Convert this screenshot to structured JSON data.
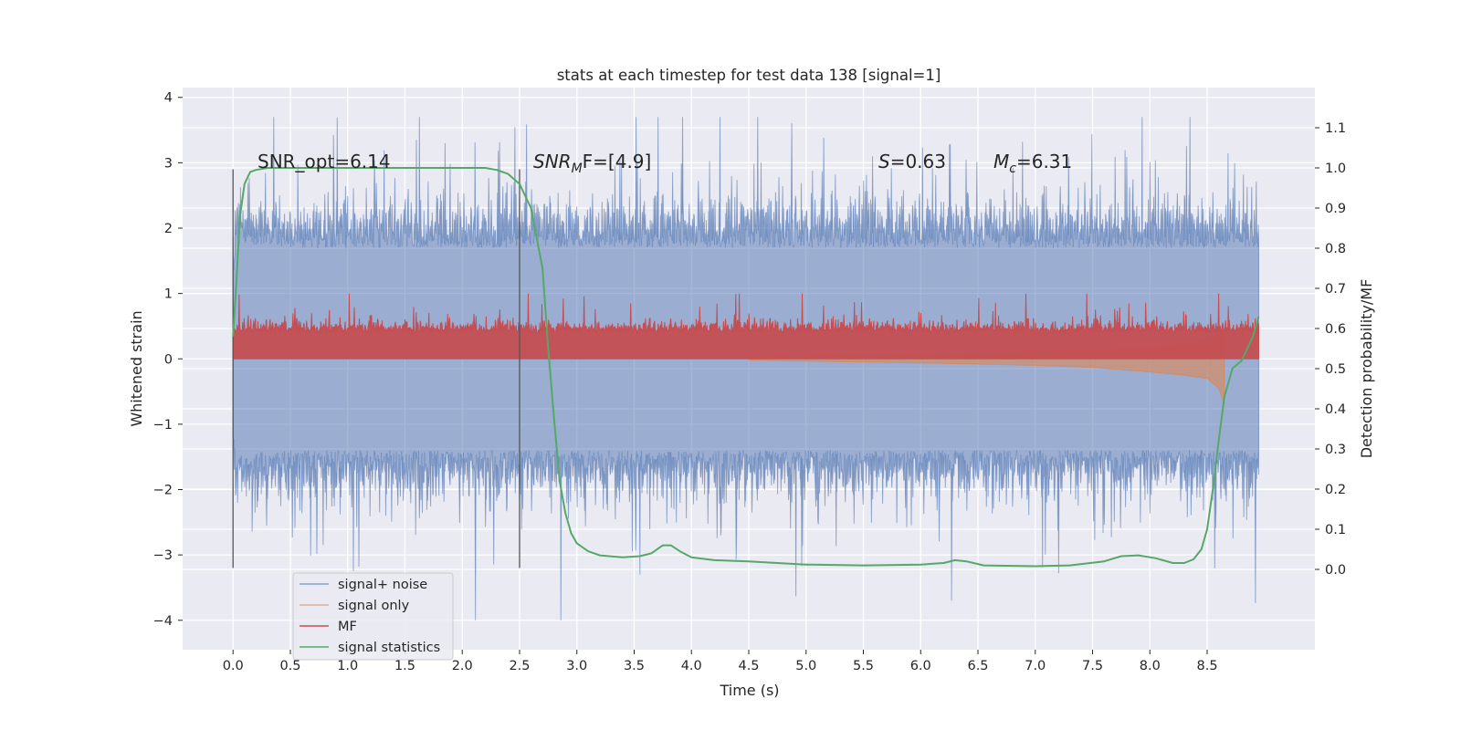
{
  "chart_data": {
    "type": "line",
    "title": "stats at each timestep for test data 138 [signal=1]",
    "xlabel": "Time (s)",
    "ylabel": "Whitened strain",
    "y2label": "Detection probability/MF",
    "xlim": [
      -0.44,
      9.44
    ],
    "ylim": [
      -4.45,
      4.15
    ],
    "y2lim": [
      -0.2,
      1.2
    ],
    "xticks": [
      0.0,
      0.5,
      1.0,
      1.5,
      2.0,
      2.5,
      3.0,
      3.5,
      4.0,
      4.5,
      5.0,
      5.5,
      6.0,
      6.5,
      7.0,
      7.5,
      8.0,
      8.5
    ],
    "xtick_labels": [
      "0.0",
      "0.5",
      "1.0",
      "1.5",
      "2.0",
      "2.5",
      "3.0",
      "3.5",
      "4.0",
      "4.5",
      "5.0",
      "5.5",
      "6.0",
      "6.5",
      "7.0",
      "7.5",
      "8.0",
      "8.5"
    ],
    "yticks": [
      -4,
      -3,
      -2,
      -1,
      0,
      1,
      2,
      3,
      4
    ],
    "ytick_labels": [
      "−4",
      "−3",
      "−2",
      "−1",
      "0",
      "1",
      "2",
      "3",
      "4"
    ],
    "y2ticks": [
      0.0,
      0.1,
      0.2,
      0.3,
      0.4,
      0.5,
      0.6,
      0.7,
      0.8,
      0.9,
      1.0,
      1.1
    ],
    "y2tick_labels": [
      "0.0",
      "0.1",
      "0.2",
      "0.3",
      "0.4",
      "0.5",
      "0.6",
      "0.7",
      "0.8",
      "0.9",
      "1.0",
      "1.1"
    ],
    "grid": true,
    "legend_position": "lower-left",
    "annotations": {
      "snr_opt": "SNR_opt=6.14",
      "snr_mf_main": "SNR",
      "snr_mf_sub": "M",
      "snr_mf_rest": "F=[4.9]",
      "s_main": "S",
      "s_rest": "=0.63",
      "mc_main": "M",
      "mc_sub": "c",
      "mc_rest": "=6.31"
    },
    "vertical_markers": {
      "axis": "y",
      "x": [
        0.0,
        2.5
      ],
      "ymin": -3.2,
      "ymax": 2.9
    },
    "series": [
      {
        "name": "signal+ noise",
        "color": "#4c72b0",
        "axis": "y",
        "x_range": [
          0.0,
          8.95
        ],
        "envelope_upper": [
          [
            0.0,
            1.1
          ],
          [
            0.02,
            1.75
          ],
          [
            0.5,
            1.7
          ],
          [
            1.0,
            1.7
          ],
          [
            2.0,
            1.7
          ],
          [
            3.0,
            1.7
          ],
          [
            4.0,
            1.7
          ],
          [
            5.0,
            1.7
          ],
          [
            6.0,
            1.7
          ],
          [
            7.0,
            1.7
          ],
          [
            8.0,
            1.7
          ],
          [
            8.95,
            1.7
          ]
        ],
        "envelope_lower": [
          [
            0.0,
            -1.0
          ],
          [
            0.02,
            -1.45
          ],
          [
            0.5,
            -1.4
          ],
          [
            1.0,
            -1.4
          ],
          [
            2.0,
            -1.4
          ],
          [
            3.0,
            -1.4
          ],
          [
            4.0,
            -1.4
          ],
          [
            5.0,
            -1.4
          ],
          [
            6.0,
            -1.4
          ],
          [
            7.0,
            -1.4
          ],
          [
            8.0,
            -1.4
          ],
          [
            8.95,
            -1.4
          ]
        ],
        "spike_max": 3.7,
        "spike_min": -4.0
      },
      {
        "name": "signal only",
        "color": "#dd8452",
        "axis": "y",
        "upper": [
          [
            4.5,
            0.02
          ],
          [
            5.5,
            0.05
          ],
          [
            6.5,
            0.08
          ],
          [
            7.0,
            0.1
          ],
          [
            7.5,
            0.13
          ],
          [
            8.0,
            0.17
          ],
          [
            8.3,
            0.22
          ],
          [
            8.5,
            0.3
          ],
          [
            8.6,
            0.38
          ],
          [
            8.65,
            0.45
          ]
        ],
        "lower": [
          [
            4.5,
            -0.02
          ],
          [
            5.5,
            -0.05
          ],
          [
            6.5,
            -0.08
          ],
          [
            7.0,
            -0.1
          ],
          [
            7.5,
            -0.13
          ],
          [
            8.0,
            -0.2
          ],
          [
            8.3,
            -0.25
          ],
          [
            8.5,
            -0.3
          ],
          [
            8.6,
            -0.45
          ],
          [
            8.65,
            -0.7
          ]
        ]
      },
      {
        "name": "MF",
        "color": "#c44e52",
        "axis": "y",
        "x_range": [
          0.0,
          8.95
        ],
        "baseline": 0.0,
        "band_top": 0.45,
        "peak_max": 1.0
      },
      {
        "name": "signal statistics",
        "color": "#55a868",
        "axis": "y2",
        "points": [
          [
            0.0,
            0.58
          ],
          [
            0.03,
            0.72
          ],
          [
            0.06,
            0.88
          ],
          [
            0.1,
            0.96
          ],
          [
            0.15,
            0.99
          ],
          [
            0.2,
            0.995
          ],
          [
            0.3,
            1.0
          ],
          [
            0.5,
            1.0
          ],
          [
            1.0,
            1.0
          ],
          [
            1.5,
            1.0
          ],
          [
            2.0,
            1.0
          ],
          [
            2.2,
            1.0
          ],
          [
            2.3,
            0.995
          ],
          [
            2.4,
            0.985
          ],
          [
            2.5,
            0.96
          ],
          [
            2.6,
            0.9
          ],
          [
            2.7,
            0.75
          ],
          [
            2.75,
            0.55
          ],
          [
            2.8,
            0.38
          ],
          [
            2.85,
            0.22
          ],
          [
            2.9,
            0.14
          ],
          [
            2.95,
            0.09
          ],
          [
            3.0,
            0.065
          ],
          [
            3.1,
            0.045
          ],
          [
            3.2,
            0.035
          ],
          [
            3.4,
            0.03
          ],
          [
            3.55,
            0.033
          ],
          [
            3.65,
            0.04
          ],
          [
            3.75,
            0.06
          ],
          [
            3.82,
            0.06
          ],
          [
            3.9,
            0.045
          ],
          [
            4.0,
            0.03
          ],
          [
            4.2,
            0.023
          ],
          [
            4.5,
            0.02
          ],
          [
            5.0,
            0.012
          ],
          [
            5.5,
            0.01
          ],
          [
            6.0,
            0.012
          ],
          [
            6.2,
            0.016
          ],
          [
            6.3,
            0.023
          ],
          [
            6.4,
            0.02
          ],
          [
            6.55,
            0.01
          ],
          [
            7.0,
            0.008
          ],
          [
            7.3,
            0.01
          ],
          [
            7.6,
            0.02
          ],
          [
            7.75,
            0.033
          ],
          [
            7.9,
            0.035
          ],
          [
            8.05,
            0.028
          ],
          [
            8.2,
            0.016
          ],
          [
            8.3,
            0.016
          ],
          [
            8.38,
            0.025
          ],
          [
            8.45,
            0.05
          ],
          [
            8.5,
            0.1
          ],
          [
            8.55,
            0.2
          ],
          [
            8.6,
            0.32
          ],
          [
            8.65,
            0.43
          ],
          [
            8.72,
            0.5
          ],
          [
            8.8,
            0.52
          ],
          [
            8.9,
            0.58
          ],
          [
            8.95,
            0.63
          ]
        ]
      }
    ]
  }
}
